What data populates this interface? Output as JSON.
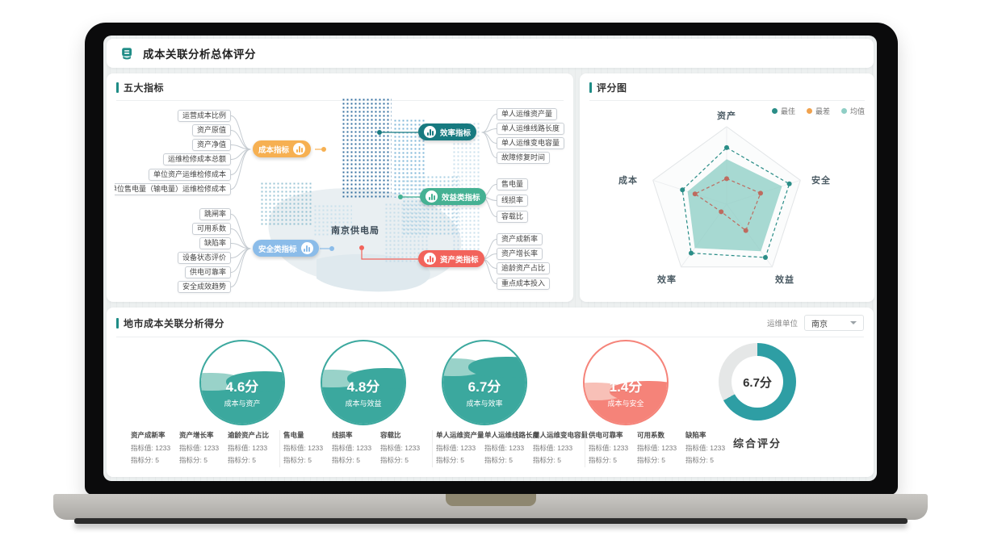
{
  "header": {
    "title": "成本关联分析总体评分",
    "brand_color": "#1E8C86"
  },
  "panels": {
    "indicators": {
      "title": "五大指标",
      "center_label": "南京供电局",
      "nodes": [
        {
          "label": "成本指标",
          "color": "#F6B052",
          "children": [
            "运营成本比例",
            "资产原值",
            "资产净值",
            "运维检修成本总额",
            "单位资产运维检修成本",
            "单位售电量（输电量）运维检修成本"
          ]
        },
        {
          "label": "安全类指标",
          "color": "#8BBCE9",
          "children": [
            "跳闸率",
            "可用系数",
            "缺陷率",
            "设备状态评价",
            "供电可靠率",
            "安全成效趋势"
          ]
        },
        {
          "label": "效率指标",
          "color": "#177A80",
          "children": [
            "单人运维资产量",
            "单人运维线路长度",
            "单人运维变电容量",
            "故障修复时间"
          ]
        },
        {
          "label": "效益类指标",
          "color": "#45B193",
          "children": [
            "售电量",
            "线损率",
            "容载比"
          ]
        },
        {
          "label": "资产类指标",
          "color": "#F2635B",
          "children": [
            "资产成新率",
            "资产增长率",
            "逾龄资产占比",
            "重点成本投入"
          ]
        }
      ]
    },
    "score_chart": {
      "title": "评分图"
    },
    "city_score": {
      "title": "地市成本关联分析得分",
      "unit_label": "运维单位",
      "unit_value": "南京",
      "gauges": [
        {
          "score": "4.6分",
          "label": "成本与资产",
          "percent": 52,
          "color": "#3BA89E",
          "wave_color": "#99D2C9"
        },
        {
          "score": "4.8分",
          "label": "成本与效益",
          "percent": 56,
          "color": "#3BA89E",
          "wave_color": "#99D2C9"
        },
        {
          "score": "6.7分",
          "label": "成本与效率",
          "percent": 70,
          "color": "#3BA89E",
          "wave_color": "#99D2C9"
        },
        {
          "score": "1.4分",
          "label": "成本与安全",
          "percent": 40,
          "color": "#F58379",
          "wave_color": "#F8C0B7"
        }
      ],
      "overall": {
        "score": "6.7分",
        "label": "综合评分",
        "percent": 67,
        "color": "#2E9EA4",
        "track_color": "#E5E7E7"
      },
      "metric_groups": [
        {
          "metrics": [
            {
              "name": "资产成新率",
              "value": "指标值: 1233",
              "score": "指标分: 5"
            },
            {
              "name": "资产增长率",
              "value": "指标值: 1233",
              "score": "指标分: 5"
            },
            {
              "name": "逾龄资产占比",
              "value": "指标值: 1233",
              "score": "指标分: 5"
            }
          ]
        },
        {
          "metrics": [
            {
              "name": "售电量",
              "value": "指标值: 1233",
              "score": "指标分: 5"
            },
            {
              "name": "线损率",
              "value": "指标值: 1233",
              "score": "指标分: 5"
            },
            {
              "name": "容载比",
              "value": "指标值: 1233",
              "score": "指标分: 5"
            }
          ]
        },
        {
          "metrics": [
            {
              "name": "单人运维资产量",
              "value": "指标值: 1233",
              "score": "指标分: 5"
            },
            {
              "name": "单人运维线路长度",
              "value": "指标值: 1233",
              "score": "指标分: 5"
            },
            {
              "name": "单人运维变电容量",
              "value": "指标值: 1233",
              "score": "指标分: 5"
            }
          ]
        },
        {
          "metrics": [
            {
              "name": "供电可靠率",
              "value": "指标值: 1233",
              "score": "指标分: 5"
            },
            {
              "name": "可用系数",
              "value": "指标值: 1233",
              "score": "指标分: 5"
            },
            {
              "name": "缺陷率",
              "value": "指标值: 1233",
              "score": "指标分: 5"
            }
          ]
        }
      ]
    }
  },
  "chart_data": {
    "type": "radar",
    "title": "评分图",
    "axes": [
      "资产",
      "安全",
      "效益",
      "效率",
      "成本"
    ],
    "range": [
      0,
      10
    ],
    "legend_position": "top-right",
    "series": [
      {
        "name": "最佳",
        "color": "#2A8D87",
        "style": "dashed",
        "values": [
          7.3,
          8.5,
          8.5,
          7.8,
          6.0
        ]
      },
      {
        "name": "最差",
        "color": "#F0A24E",
        "line_color": "#BE6B5F",
        "style": "dashed",
        "values": [
          3.3,
          4.6,
          4.2,
          1.2,
          4.3
        ]
      },
      {
        "name": "均值",
        "color": "#8FCEC5",
        "style": "area",
        "values": [
          5.8,
          7.5,
          7.5,
          7.0,
          5.3
        ]
      }
    ]
  }
}
